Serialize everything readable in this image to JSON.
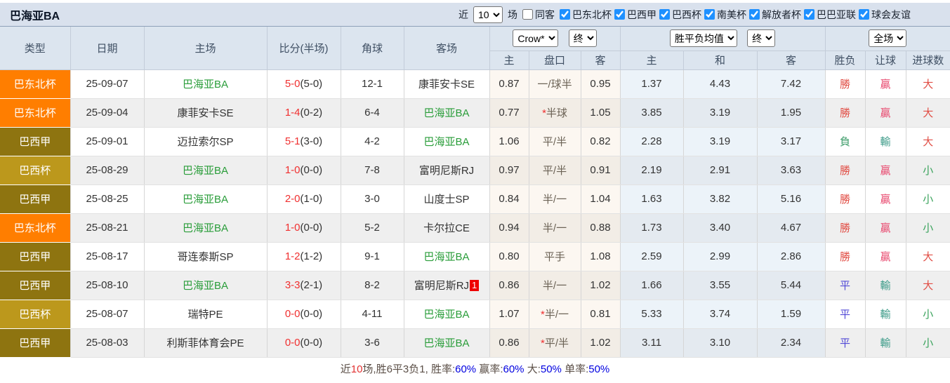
{
  "header_bar": {
    "title": "巴海亚BA",
    "near_label": "近",
    "matches_count": "10",
    "matches_label": "场",
    "same_venue": {
      "label": "同客",
      "checked": false
    },
    "league_filters": [
      {
        "label": "巴东北杯",
        "checked": true
      },
      {
        "label": "巴西甲",
        "checked": true
      },
      {
        "label": "巴西杯",
        "checked": true
      },
      {
        "label": "南美杯",
        "checked": true
      },
      {
        "label": "解放者杯",
        "checked": true
      },
      {
        "label": "巴巴亚联",
        "checked": true
      },
      {
        "label": "球会友谊",
        "checked": true
      }
    ]
  },
  "table": {
    "controls": {
      "company": "Crow*",
      "company_time": "终",
      "avg": "胜平负均值",
      "avg_time": "终",
      "scope": "全场"
    },
    "main_columns": [
      "类型",
      "日期",
      "主场",
      "比分(半场)",
      "角球",
      "客场"
    ],
    "sub_columns": [
      "主",
      "盘口",
      "客",
      "主",
      "和",
      "客",
      "胜负",
      "让球",
      "进球数"
    ],
    "rows": [
      {
        "league": "巴东北杯",
        "date": "25-09-07",
        "home": "巴海亚BA",
        "score_ft": "5-0",
        "score_ht": "(5-0)",
        "corner": "12-1",
        "away": "康菲安卡SE",
        "away_badge": "",
        "crow_home": "0.87",
        "handicap_star": "",
        "handicap": "一/球半",
        "crow_away": "0.95",
        "avg_home": "1.37",
        "avg_draw": "4.43",
        "avg_away": "7.42",
        "result_wdl": "勝",
        "result_handicap": "贏",
        "result_ou": "大"
      },
      {
        "league": "巴东北杯",
        "date": "25-09-04",
        "home": "康菲安卡SE",
        "score_ft": "1-4",
        "score_ht": "(0-2)",
        "corner": "6-4",
        "away": "巴海亚BA",
        "away_badge": "",
        "crow_home": "0.77",
        "handicap_star": "*",
        "handicap": "半球",
        "crow_away": "1.05",
        "avg_home": "3.85",
        "avg_draw": "3.19",
        "avg_away": "1.95",
        "result_wdl": "勝",
        "result_handicap": "贏",
        "result_ou": "大"
      },
      {
        "league": "巴西甲",
        "date": "25-09-01",
        "home": "迈拉索尔SP",
        "score_ft": "5-1",
        "score_ht": "(3-0)",
        "corner": "4-2",
        "away": "巴海亚BA",
        "away_badge": "",
        "crow_home": "1.06",
        "handicap_star": "",
        "handicap": "平/半",
        "crow_away": "0.82",
        "avg_home": "2.28",
        "avg_draw": "3.19",
        "avg_away": "3.17",
        "result_wdl": "負",
        "result_handicap": "輸",
        "result_ou": "大"
      },
      {
        "league": "巴西杯",
        "date": "25-08-29",
        "home": "巴海亚BA",
        "score_ft": "1-0",
        "score_ht": "(0-0)",
        "corner": "7-8",
        "away": "富明尼斯RJ",
        "away_badge": "",
        "crow_home": "0.97",
        "handicap_star": "",
        "handicap": "平/半",
        "crow_away": "0.91",
        "avg_home": "2.19",
        "avg_draw": "2.91",
        "avg_away": "3.63",
        "result_wdl": "勝",
        "result_handicap": "贏",
        "result_ou": "小"
      },
      {
        "league": "巴西甲",
        "date": "25-08-25",
        "home": "巴海亚BA",
        "score_ft": "2-0",
        "score_ht": "(1-0)",
        "corner": "3-0",
        "away": "山度士SP",
        "away_badge": "",
        "crow_home": "0.84",
        "handicap_star": "",
        "handicap": "半/一",
        "crow_away": "1.04",
        "avg_home": "1.63",
        "avg_draw": "3.82",
        "avg_away": "5.16",
        "result_wdl": "勝",
        "result_handicap": "贏",
        "result_ou": "小"
      },
      {
        "league": "巴东北杯",
        "date": "25-08-21",
        "home": "巴海亚BA",
        "score_ft": "1-0",
        "score_ht": "(0-0)",
        "corner": "5-2",
        "away": "卡尔拉CE",
        "away_badge": "",
        "crow_home": "0.94",
        "handicap_star": "",
        "handicap": "半/一",
        "crow_away": "0.88",
        "avg_home": "1.73",
        "avg_draw": "3.40",
        "avg_away": "4.67",
        "result_wdl": "勝",
        "result_handicap": "贏",
        "result_ou": "小"
      },
      {
        "league": "巴西甲",
        "date": "25-08-17",
        "home": "哥连泰斯SP",
        "score_ft": "1-2",
        "score_ht": "(1-2)",
        "corner": "9-1",
        "away": "巴海亚BA",
        "away_badge": "",
        "crow_home": "0.80",
        "handicap_star": "",
        "handicap": "平手",
        "crow_away": "1.08",
        "avg_home": "2.59",
        "avg_draw": "2.99",
        "avg_away": "2.86",
        "result_wdl": "勝",
        "result_handicap": "贏",
        "result_ou": "大"
      },
      {
        "league": "巴西甲",
        "date": "25-08-10",
        "home": "巴海亚BA",
        "score_ft": "3-3",
        "score_ht": "(2-1)",
        "corner": "8-2",
        "away": "富明尼斯RJ",
        "away_badge": "1",
        "crow_home": "0.86",
        "handicap_star": "",
        "handicap": "半/一",
        "crow_away": "1.02",
        "avg_home": "1.66",
        "avg_draw": "3.55",
        "avg_away": "5.44",
        "result_wdl": "平",
        "result_handicap": "輸",
        "result_ou": "大"
      },
      {
        "league": "巴西杯",
        "date": "25-08-07",
        "home": "瑞特PE",
        "score_ft": "0-0",
        "score_ht": "(0-0)",
        "corner": "4-11",
        "away": "巴海亚BA",
        "away_badge": "",
        "crow_home": "1.07",
        "handicap_star": "*",
        "handicap": "半/一",
        "crow_away": "0.81",
        "avg_home": "5.33",
        "avg_draw": "3.74",
        "avg_away": "1.59",
        "result_wdl": "平",
        "result_handicap": "輸",
        "result_ou": "小"
      },
      {
        "league": "巴西甲",
        "date": "25-08-03",
        "home": "利斯菲体育会PE",
        "score_ft": "0-0",
        "score_ht": "(0-0)",
        "corner": "3-6",
        "away": "巴海亚BA",
        "away_badge": "",
        "crow_home": "0.86",
        "handicap_star": "*",
        "handicap": "平/半",
        "crow_away": "1.02",
        "avg_home": "3.11",
        "avg_draw": "3.10",
        "avg_away": "2.34",
        "result_wdl": "平",
        "result_handicap": "輸",
        "result_ou": "小"
      }
    ]
  },
  "summary": {
    "segments": [
      {
        "text": "近",
        "c": "dark"
      },
      {
        "text": "10",
        "c": "red"
      },
      {
        "text": "场,胜6平3负1, 胜率:",
        "c": "dark"
      },
      {
        "text": "60%",
        "c": "blue"
      },
      {
        "text": " 赢率:",
        "c": "dark"
      },
      {
        "text": "60%",
        "c": "blue"
      },
      {
        "text": " 大:",
        "c": "dark"
      },
      {
        "text": "50%",
        "c": "blue"
      },
      {
        "text": " 单率:",
        "c": "dark"
      },
      {
        "text": "50%",
        "c": "blue"
      }
    ]
  },
  "colors": {
    "league": {
      "巴东北杯": "#ff7e00",
      "巴西甲": "#8e7410",
      "巴西杯": "#bc981c"
    },
    "result": {
      "勝": "#e14d44",
      "贏": "#e8486e",
      "負": "#3f9d6b",
      "輸": "#3c9b88",
      "平": "#5149d6",
      "大": "#e14d44",
      "小": "#3aa35c"
    },
    "team_highlight": "#2a9d3a",
    "score": "#f03030",
    "checkbox_accent": "#1e90ff"
  }
}
